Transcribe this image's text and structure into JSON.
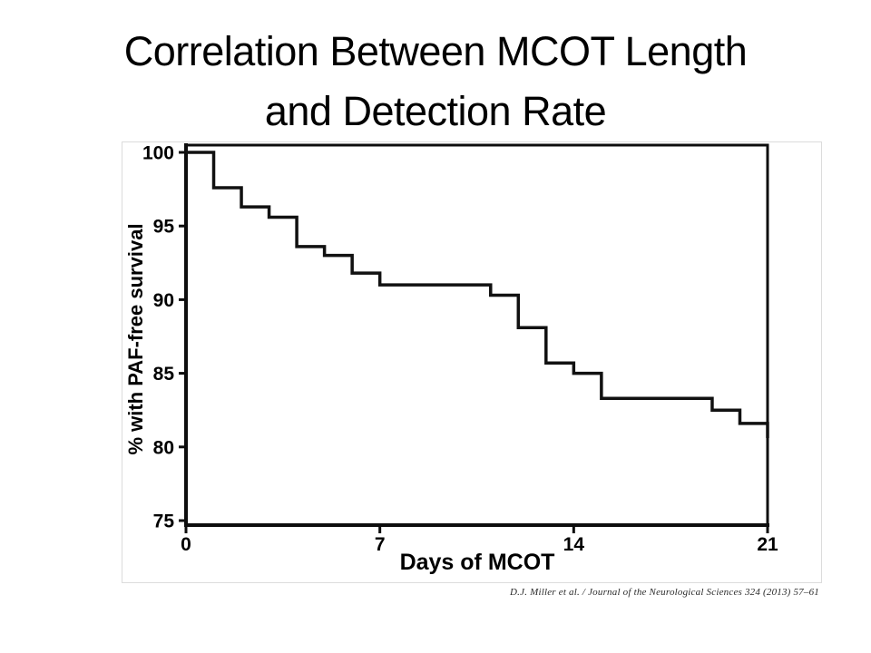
{
  "slide": {
    "title_lines": [
      "Correlation Between MCOT Length",
      "and Detection Rate"
    ],
    "citation": "D.J. Miller et al. / Journal of the Neurological Sciences 324 (2013) 57–61"
  },
  "chart_data": {
    "type": "line",
    "step_mode": "post",
    "title": "",
    "xlabel": "Days of MCOT",
    "ylabel": "% with PAF-free survival",
    "xlim": [
      0,
      21
    ],
    "ylim": [
      75,
      100
    ],
    "xticks": [
      0,
      7,
      14,
      21
    ],
    "yticks": [
      100,
      95,
      90,
      85,
      80,
      75
    ],
    "grid": false,
    "legend_position": "none",
    "frame": "full-box",
    "line_color": "#111111",
    "series": [
      {
        "name": "% with PAF-free survival",
        "points": [
          [
            0,
            100
          ],
          [
            1,
            97.6
          ],
          [
            2,
            96.3
          ],
          [
            3,
            95.6
          ],
          [
            4,
            93.6
          ],
          [
            5,
            93.0
          ],
          [
            6,
            91.8
          ],
          [
            7,
            91.0
          ],
          [
            11,
            90.3
          ],
          [
            12,
            88.1
          ],
          [
            13,
            85.7
          ],
          [
            14,
            85.0
          ],
          [
            15,
            83.3
          ],
          [
            19,
            82.5
          ],
          [
            20,
            81.6
          ],
          [
            21,
            80.6
          ]
        ]
      }
    ]
  }
}
